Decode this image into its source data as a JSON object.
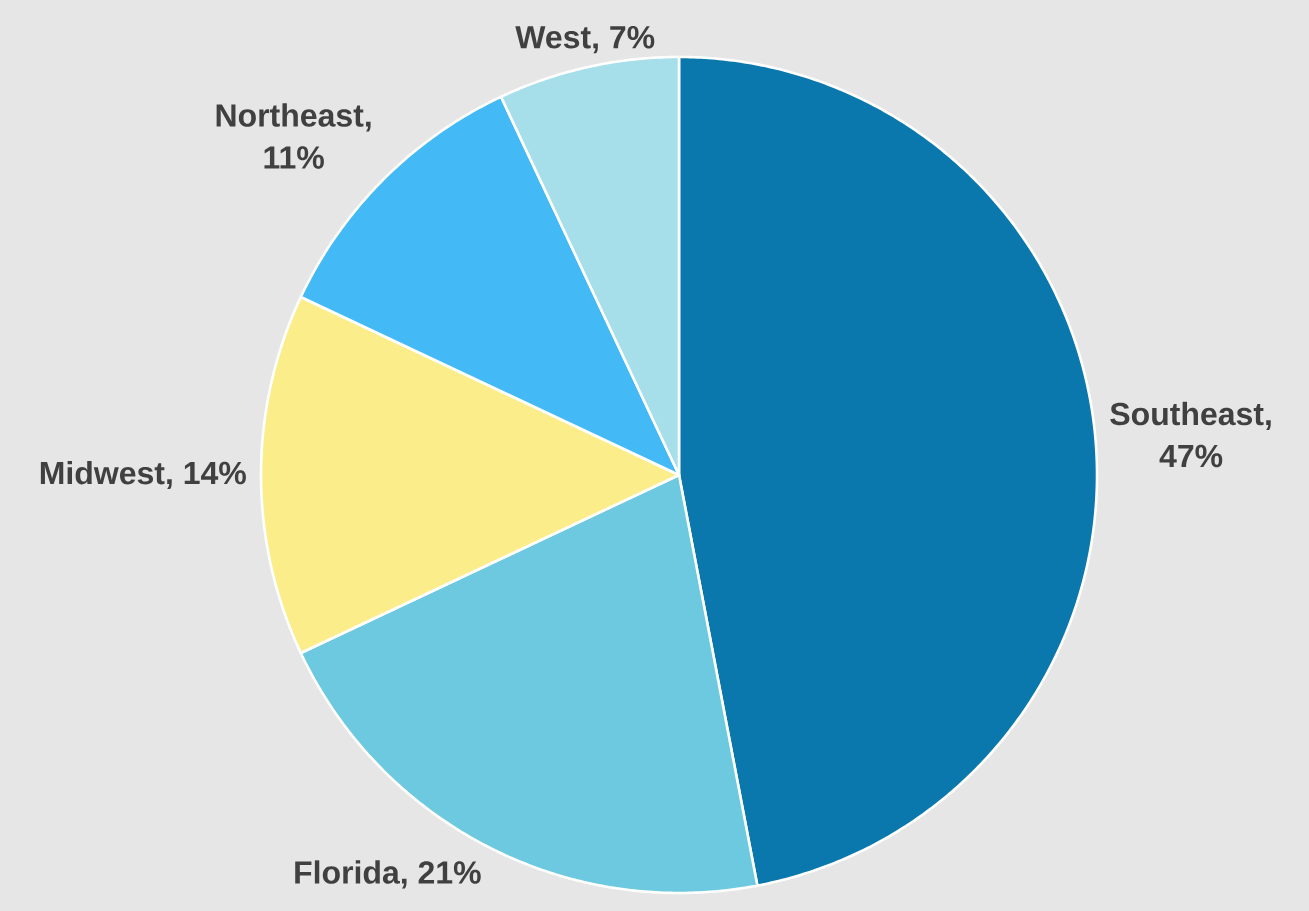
{
  "chart_data": {
    "type": "pie",
    "categories": [
      "Southeast, 47%",
      "Florida, 21%",
      "Midwest, 14%",
      "Northeast, 11%",
      "West, 7%"
    ],
    "values": [
      47,
      21,
      14,
      11,
      7
    ],
    "colors": [
      "#0a77ad",
      "#6cc9df",
      "#fbed89",
      "#43baf6",
      "#a6dee9"
    ]
  }
}
